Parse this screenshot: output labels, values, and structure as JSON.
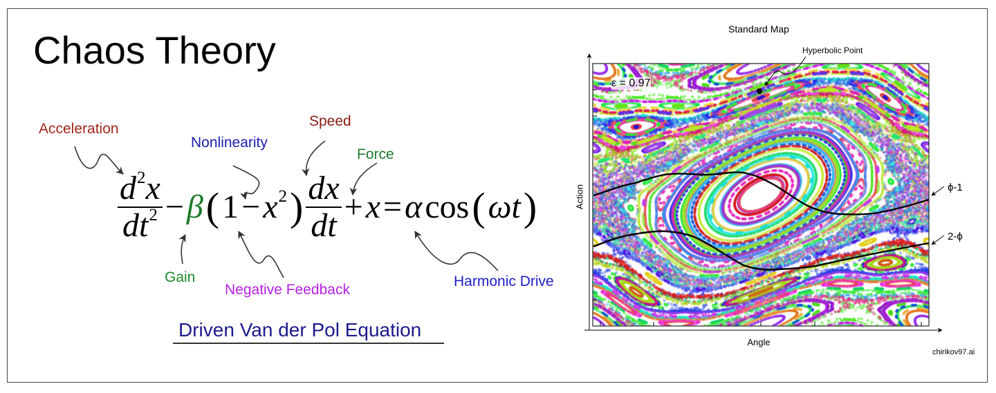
{
  "title": "Chaos Theory",
  "equation": {
    "d2x_num": "d",
    "sup2": "2",
    "x": "x",
    "dt_den": "dt",
    "minus": "−",
    "beta": "β",
    "lparen": "(",
    "rparen": ")",
    "one": "1",
    "dx": "dx",
    "dt": "dt",
    "plus": "+",
    "equals": "=",
    "alpha": "α",
    "cos": "cos",
    "omega_t": "ωt"
  },
  "annotations": {
    "acceleration": {
      "text": "Acceleration",
      "color": "#a3281b"
    },
    "nonlinearity": {
      "text": "Nonlinearity",
      "color": "#1c1cae"
    },
    "speed": {
      "text": "Speed",
      "color": "#8c1c14"
    },
    "force": {
      "text": "Force",
      "color": "#1f7a2c"
    },
    "gain": {
      "text": "Gain",
      "color": "#1f8a2c"
    },
    "negative_feedback": {
      "text": "Negative Feedback",
      "color": "#b51fe6"
    },
    "harmonic_drive": {
      "text": "Harmonic Drive",
      "color": "#1c1cc8"
    }
  },
  "subtitle": "Driven Van der Pol Equation",
  "standard_map": {
    "title": "Standard Map",
    "epsilon_label": "ε = 0.97",
    "hyperbolic_point_label": "Hyperbolic Point",
    "curve_labels": [
      "ϕ-1",
      "2-ϕ"
    ],
    "x_axis_label": "Angle",
    "y_axis_label": "Action",
    "credit": "chirikov97.ai"
  }
}
